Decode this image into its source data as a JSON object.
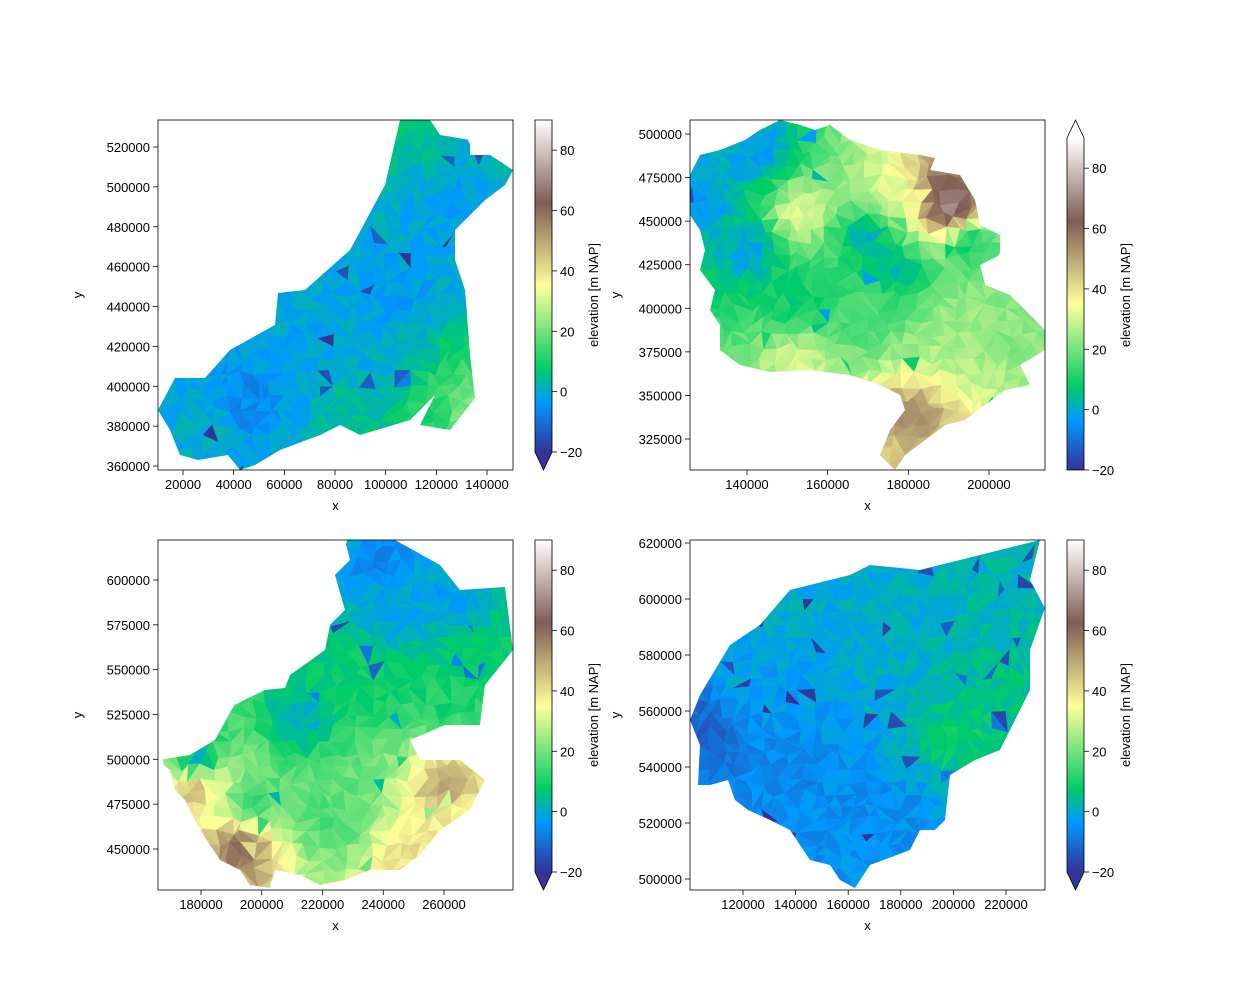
{
  "colormap": {
    "name": "terrain",
    "stops": [
      [
        0,
        "#333399"
      ],
      [
        0.15,
        "#0099ff"
      ],
      [
        0.25,
        "#00cc66"
      ],
      [
        0.5,
        "#ffff99"
      ],
      [
        0.75,
        "#805c54"
      ],
      [
        1,
        "#ffffff"
      ]
    ]
  },
  "chart_data": [
    {
      "type": "heatmap",
      "xlabel": "x",
      "ylabel": "y",
      "xlim": [
        10130,
        150260
      ],
      "ylim": [
        358020,
        533540
      ],
      "xticks": [
        20000,
        40000,
        60000,
        80000,
        100000,
        120000,
        140000
      ],
      "yticks": [
        360000,
        380000,
        400000,
        420000,
        440000,
        460000,
        480000,
        500000,
        520000
      ],
      "colorbar": {
        "label": "elevation [m NAP]",
        "range": [
          -20,
          90
        ],
        "ticks": [
          -20,
          0,
          20,
          40,
          60,
          80
        ],
        "extend": "min"
      },
      "outline": [
        [
          10130,
          388100
        ],
        [
          16840,
          404150
        ],
        [
          28690,
          404150
        ],
        [
          38560,
          418200
        ],
        [
          56320,
          430730
        ],
        [
          57510,
          446780
        ],
        [
          68170,
          448280
        ],
        [
          85930,
          468350
        ],
        [
          99750,
          500940
        ],
        [
          105670,
          533540
        ],
        [
          117520,
          533540
        ],
        [
          121460,
          526020
        ],
        [
          133310,
          523510
        ],
        [
          133310,
          516000
        ],
        [
          141200,
          516000
        ],
        [
          150260,
          508460
        ],
        [
          147130,
          500940
        ],
        [
          139230,
          493420
        ],
        [
          127380,
          478380
        ],
        [
          127380,
          463330
        ],
        [
          131330,
          448280
        ],
        [
          133310,
          415690
        ],
        [
          135280,
          394120
        ],
        [
          125410,
          378080
        ],
        [
          113570,
          380580
        ],
        [
          119490,
          395630
        ],
        [
          109620,
          383090
        ],
        [
          89880,
          375570
        ],
        [
          81990,
          380580
        ],
        [
          74090,
          375570
        ],
        [
          58300,
          368050
        ],
        [
          48430,
          360530
        ],
        [
          42500,
          358020
        ],
        [
          37760,
          365540
        ],
        [
          25920,
          363030
        ],
        [
          18820,
          365540
        ],
        [
          14870,
          378080
        ]
      ],
      "samples": [
        [
          46450,
          393120,
          -6
        ],
        [
          105670,
          443270,
          -3
        ],
        [
          125410,
          493420,
          -2
        ],
        [
          26710,
          378080,
          0
        ],
        [
          121460,
          388100,
          10
        ],
        [
          128570,
          388100,
          22
        ],
        [
          85930,
          388100,
          4
        ],
        [
          109620,
          523510,
          4
        ],
        [
          66190,
          418200,
          -2
        ],
        [
          97780,
          408170,
          0
        ]
      ]
    },
    {
      "type": "heatmap",
      "xlabel": "x",
      "ylabel": "y",
      "xlim": [
        125870,
        213890
      ],
      "ylim": [
        307210,
        508030
      ],
      "xticks": [
        140000,
        160000,
        180000,
        200000
      ],
      "yticks": [
        325000,
        350000,
        375000,
        400000,
        425000,
        450000,
        475000,
        500000
      ],
      "colorbar": {
        "label": "elevation [m NAP]",
        "range": [
          -20,
          90
        ],
        "ticks": [
          -20,
          0,
          20,
          40,
          60,
          80
        ],
        "extend": "max"
      },
      "outline": [
        [
          125870,
          476480
        ],
        [
          128350,
          487950
        ],
        [
          133310,
          490820
        ],
        [
          139510,
          496560
        ],
        [
          143230,
          502290
        ],
        [
          148190,
          508030
        ],
        [
          153150,
          505160
        ],
        [
          156870,
          502290
        ],
        [
          160590,
          505160
        ],
        [
          165550,
          496560
        ],
        [
          172990,
          490820
        ],
        [
          182910,
          487950
        ],
        [
          186630,
          486230
        ],
        [
          185390,
          479350
        ],
        [
          192830,
          476480
        ],
        [
          196550,
          462130
        ],
        [
          197790,
          447790
        ],
        [
          202750,
          442050
        ],
        [
          202750,
          430580
        ],
        [
          197790,
          424840
        ],
        [
          199030,
          413370
        ],
        [
          205230,
          407630
        ],
        [
          213910,
          387550
        ],
        [
          213910,
          376080
        ],
        [
          207710,
          367470
        ],
        [
          210190,
          356000
        ],
        [
          203990,
          353130
        ],
        [
          199030,
          344520
        ],
        [
          194070,
          335920
        ],
        [
          189110,
          333050
        ],
        [
          184150,
          324450
        ],
        [
          179190,
          315810
        ],
        [
          176710,
          307240
        ],
        [
          172990,
          315810
        ],
        [
          175470,
          330180
        ],
        [
          179190,
          341660
        ],
        [
          177950,
          350260
        ],
        [
          172990,
          356000
        ],
        [
          165550,
          361740
        ],
        [
          155630,
          364610
        ],
        [
          145710,
          363460
        ],
        [
          138270,
          367470
        ],
        [
          133310,
          376080
        ],
        [
          133310,
          390420
        ],
        [
          130830,
          399030
        ],
        [
          132070,
          410500
        ],
        [
          128350,
          421980
        ],
        [
          129590,
          433450
        ],
        [
          128350,
          444920
        ],
        [
          125870,
          453530
        ]
      ],
      "samples": [
        [
          143230,
          490820,
          -3
        ],
        [
          177950,
          462130,
          30
        ],
        [
          187870,
          467870,
          60
        ],
        [
          190350,
          459270,
          75
        ],
        [
          153150,
          453530,
          32
        ],
        [
          140750,
          433450,
          -1
        ],
        [
          177950,
          421980,
          3
        ],
        [
          195310,
          436310,
          8
        ],
        [
          153150,
          404760,
          8
        ],
        [
          190350,
          381810,
          25
        ],
        [
          153150,
          370340,
          30
        ],
        [
          207710,
          387550,
          22
        ],
        [
          180430,
          335920,
          55
        ],
        [
          177950,
          313010,
          45
        ],
        [
          168030,
          393290,
          15
        ],
        [
          128350,
          462130,
          -3
        ],
        [
          170510,
          439190,
          0
        ]
      ]
    },
    {
      "type": "heatmap",
      "xlabel": "x",
      "ylabel": "y",
      "xlim": [
        165840,
        282720
      ],
      "ylim": [
        427130,
        622300
      ],
      "xticks": [
        180000,
        200000,
        220000,
        240000,
        260000
      ],
      "yticks": [
        450000,
        475000,
        500000,
        525000,
        550000,
        575000,
        600000
      ],
      "colorbar": {
        "label": "elevation [m NAP]",
        "range": [
          -20,
          90
        ],
        "ticks": [
          -20,
          0,
          20,
          40,
          60,
          80
        ],
        "extend": "min"
      },
      "outline": [
        [
          165840,
          499610
        ],
        [
          176370,
          502400
        ],
        [
          184600,
          510760
        ],
        [
          190950,
          530280
        ],
        [
          201060,
          538640
        ],
        [
          207650,
          539760
        ],
        [
          209300,
          547010
        ],
        [
          220820,
          560950
        ],
        [
          222460,
          574900
        ],
        [
          227400,
          583260
        ],
        [
          224110,
          602780
        ],
        [
          229050,
          611150
        ],
        [
          227400,
          622300
        ],
        [
          243860,
          622300
        ],
        [
          258670,
          608360
        ],
        [
          265260,
          594420
        ],
        [
          280070,
          596090
        ],
        [
          282710,
          560950
        ],
        [
          273490,
          541430
        ],
        [
          271840,
          519130
        ],
        [
          260320,
          519130
        ],
        [
          248800,
          510760
        ],
        [
          252090,
          499610
        ],
        [
          265260,
          499610
        ],
        [
          273490,
          488450
        ],
        [
          268550,
          471720
        ],
        [
          258670,
          460570
        ],
        [
          252090,
          446630
        ],
        [
          245510,
          438260
        ],
        [
          235630,
          438260
        ],
        [
          227400,
          432680
        ],
        [
          219170,
          429890
        ],
        [
          212590,
          435470
        ],
        [
          204360,
          438260
        ],
        [
          202710,
          428220
        ],
        [
          196130,
          429890
        ],
        [
          192840,
          438260
        ],
        [
          186250,
          443840
        ],
        [
          179670,
          460570
        ],
        [
          174730,
          477300
        ],
        [
          171440,
          482880
        ],
        [
          169790,
          494030
        ]
      ],
      "samples": [
        [
          238900,
          611150,
          -6
        ],
        [
          261960,
          588840,
          -2
        ],
        [
          245510,
          577680,
          -1
        ],
        [
          212590,
          521910,
          0
        ],
        [
          238900,
          544220,
          8
        ],
        [
          268550,
          555370,
          6
        ],
        [
          261960,
          533060,
          10
        ],
        [
          196130,
          477300,
          12
        ],
        [
          222460,
          466150,
          15
        ],
        [
          186250,
          488450,
          30
        ],
        [
          177960,
          482880,
          50
        ],
        [
          192840,
          449420,
          60
        ],
        [
          261960,
          482880,
          55
        ],
        [
          265260,
          471720,
          35
        ],
        [
          247150,
          443840,
          40
        ],
        [
          229050,
          482880,
          18
        ],
        [
          179670,
          499610,
          -2
        ]
      ]
    },
    {
      "type": "heatmap",
      "xlabel": "x",
      "ylabel": "y",
      "xlim": [
        99850,
        234830
      ],
      "ylim": [
        496070,
        621070
      ],
      "xticks": [
        120000,
        140000,
        160000,
        180000,
        200000,
        220000
      ],
      "yticks": [
        500000,
        520000,
        540000,
        560000,
        580000,
        600000,
        620000
      ],
      "colorbar": {
        "label": "elevation [m NAP]",
        "range": [
          -20,
          90
        ],
        "ticks": [
          -20,
          0,
          20,
          40,
          60,
          80
        ],
        "extend": "min"
      },
      "outline": [
        [
          99850,
          556790
        ],
        [
          103650,
          565720
        ],
        [
          109360,
          574650
        ],
        [
          115060,
          583570
        ],
        [
          126460,
          590720
        ],
        [
          137870,
          603220
        ],
        [
          160680,
          608570
        ],
        [
          168290,
          612140
        ],
        [
          187300,
          610360
        ],
        [
          202500,
          613930
        ],
        [
          217710,
          617500
        ],
        [
          232920,
          621070
        ],
        [
          229120,
          606790
        ],
        [
          234820,
          596790
        ],
        [
          229120,
          581790
        ],
        [
          229120,
          567510
        ],
        [
          223420,
          556790
        ],
        [
          217710,
          546080
        ],
        [
          208210,
          542510
        ],
        [
          198700,
          537150
        ],
        [
          196800,
          521080
        ],
        [
          193000,
          517510
        ],
        [
          187300,
          517510
        ],
        [
          183500,
          510370
        ],
        [
          168290,
          505010
        ],
        [
          162580,
          496800
        ],
        [
          156880,
          499660
        ],
        [
          153080,
          505010
        ],
        [
          145480,
          506800
        ],
        [
          137870,
          517510
        ],
        [
          130270,
          521080
        ],
        [
          121900,
          524650
        ],
        [
          116960,
          528220
        ],
        [
          114300,
          535360
        ],
        [
          107460,
          533580
        ],
        [
          102890,
          533580
        ],
        [
          103650,
          547860
        ]
      ],
      "samples": [
        [
          141670,
          535360,
          -6
        ],
        [
          160680,
          528220,
          -5
        ],
        [
          179690,
          521080,
          -5
        ],
        [
          122660,
          571080,
          -2
        ],
        [
          179690,
          581790,
          0
        ],
        [
          210110,
          592500,
          2
        ],
        [
          217710,
          563930,
          6
        ],
        [
          103650,
          553220,
          -12
        ],
        [
          202500,
          549650,
          8
        ],
        [
          141670,
          596070,
          0
        ]
      ]
    }
  ]
}
